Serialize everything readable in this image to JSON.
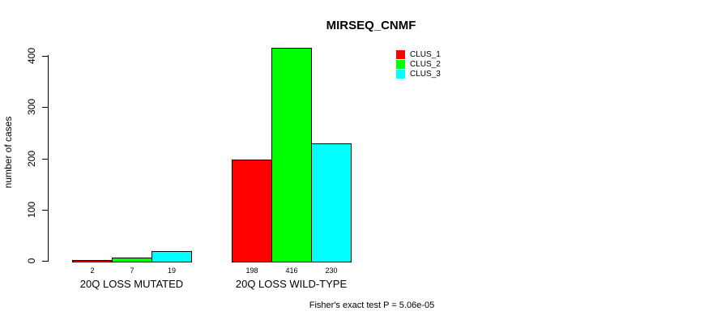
{
  "chart_data": {
    "type": "bar",
    "title": "MIRSEQ_CNMF",
    "ylabel": "number of cases",
    "xlabel": "",
    "categories": [
      "20Q LOSS MUTATED",
      "20Q LOSS WILD-TYPE"
    ],
    "series": [
      {
        "name": "CLUS_1",
        "color": "#ff0000",
        "values": [
          2,
          198
        ]
      },
      {
        "name": "CLUS_2",
        "color": "#00ff00",
        "values": [
          7,
          416
        ]
      },
      {
        "name": "CLUS_3",
        "color": "#00ffff",
        "values": [
          19,
          230
        ]
      }
    ],
    "bar_value_labels": [
      [
        "2",
        "7",
        "19"
      ],
      [
        "198",
        "416",
        "230"
      ]
    ],
    "yticks": [
      "0",
      "100",
      "200",
      "300",
      "400"
    ],
    "ytick_values": [
      0,
      100,
      200,
      300,
      400
    ],
    "ylim": [
      0,
      416
    ],
    "grid": false,
    "legend_position": "top-right",
    "annotation": "Fisher's exact test P = 5.06e-05"
  },
  "colors": {
    "background": "#ffffff",
    "axis": "#000000",
    "bar_border": "#000000",
    "text": "#000000"
  }
}
